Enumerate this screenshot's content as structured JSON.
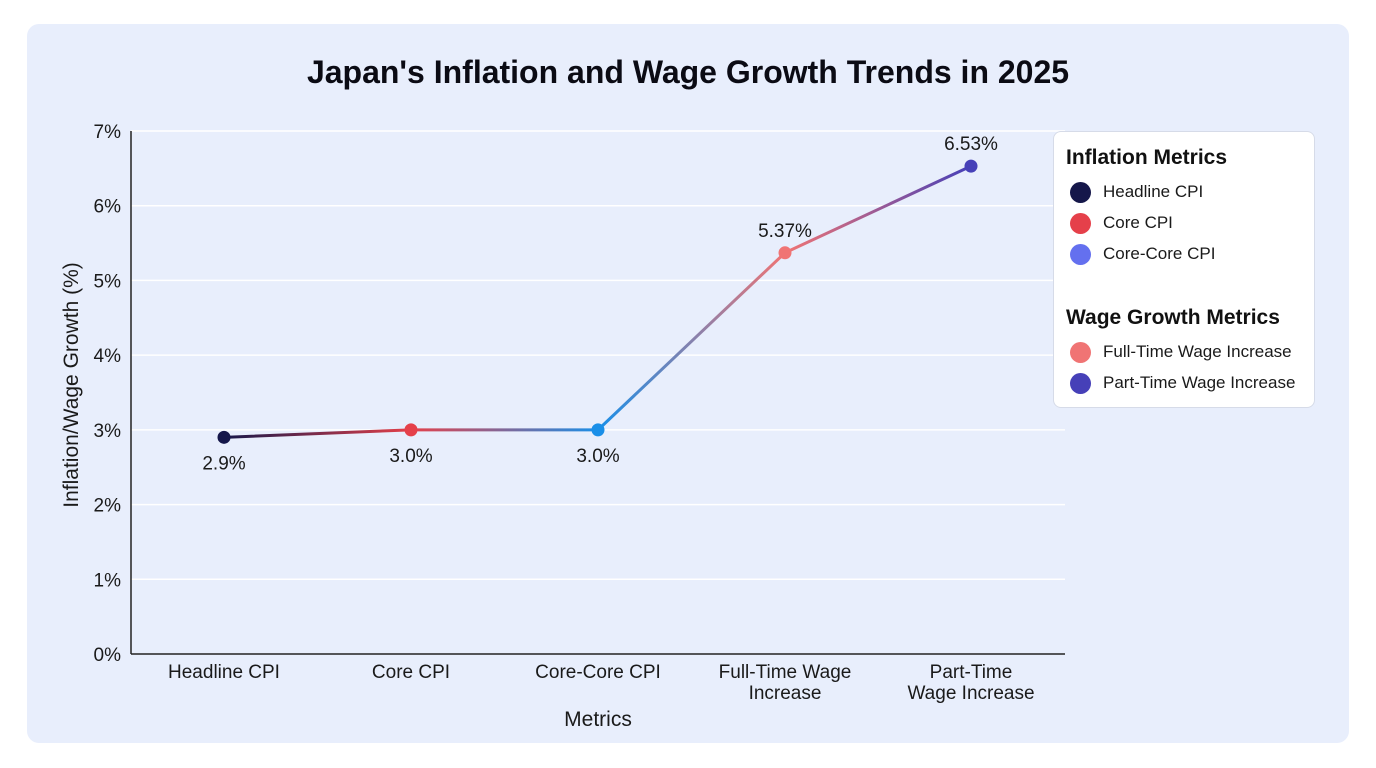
{
  "title": "Japan's Inflation and Wage Growth Trends in 2025",
  "chart_data": {
    "type": "line",
    "title": "Japan's Inflation and Wage Growth Trends in 2025",
    "xlabel": "Metrics",
    "ylabel": "Inflation/Wage Growth (%)",
    "ylim": [
      0,
      7
    ],
    "yticks": [
      "0%",
      "1%",
      "2%",
      "3%",
      "4%",
      "5%",
      "6%",
      "7%"
    ],
    "grid": "horizontal",
    "legend_placement": "top-right",
    "categories": [
      [
        "Headline CPI"
      ],
      [
        "Core CPI"
      ],
      [
        "Core-Core CPI"
      ],
      [
        "Full-Time Wage",
        "Increase"
      ],
      [
        "Part-Time",
        "Wage Increase"
      ]
    ],
    "values": [
      2.9,
      3.0,
      3.0,
      5.37,
      6.53
    ],
    "data_labels": [
      "2.9%",
      "3.0%",
      "3.0%",
      "5.37%",
      "6.53%"
    ],
    "point_colors": [
      "#15174a",
      "#e5404a",
      "#1a8fe8",
      "#f07474",
      "#4640b8"
    ]
  },
  "legend": {
    "groups": [
      {
        "title": "Inflation Metrics",
        "items": [
          {
            "label": "Headline CPI",
            "color": "#15174a"
          },
          {
            "label": "Core CPI",
            "color": "#e5404a"
          },
          {
            "label": "Core-Core CPI",
            "color": "#6470ef"
          }
        ]
      },
      {
        "title": "Wage Growth Metrics",
        "items": [
          {
            "label": "Full-Time Wage Increase",
            "color": "#f07474"
          },
          {
            "label": "Part-Time Wage Increase",
            "color": "#4640b8"
          }
        ]
      }
    ]
  }
}
